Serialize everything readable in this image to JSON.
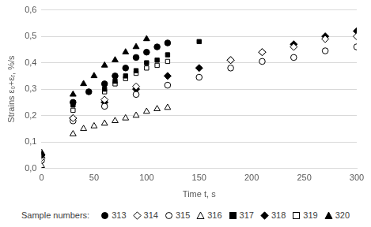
{
  "chart_data": {
    "type": "scatter",
    "x_label": "Time t, s",
    "y_label": "Strains ε₀+εᵣ, %/s",
    "legend_title": "Sample numbers:",
    "legend": "bottom",
    "grid": "y",
    "xlim": [
      0,
      300
    ],
    "xticks": [
      0,
      50,
      100,
      150,
      200,
      250,
      300
    ],
    "ylim": [
      0,
      0.6
    ],
    "yticks": [
      {
        "value": 0,
        "label": "0,0"
      },
      {
        "value": 0.1,
        "label": "0,1"
      },
      {
        "value": 0.2,
        "label": "0,2"
      },
      {
        "value": 0.3,
        "label": "0,3"
      },
      {
        "value": 0.4,
        "label": "0,4"
      },
      {
        "value": 0.5,
        "label": "0,5"
      },
      {
        "value": 0.6,
        "label": "0,6"
      }
    ],
    "series": [
      {
        "name": "313",
        "color": "#000000",
        "marker": "circle",
        "x": [
          0,
          30,
          45,
          60,
          70,
          80,
          90,
          100,
          110,
          120
        ],
        "values": [
          0.05,
          0.25,
          0.29,
          0.32,
          0.35,
          0.38,
          0.42,
          0.44,
          0.46,
          0.475
        ]
      },
      {
        "name": "314",
        "color": "#000000",
        "marker": "diamond-open",
        "x": [
          0,
          30,
          60,
          90,
          180,
          210,
          240,
          270,
          300
        ],
        "values": [
          0.04,
          0.19,
          0.26,
          0.31,
          0.41,
          0.44,
          0.46,
          0.49,
          0.5
        ]
      },
      {
        "name": "315",
        "color": "#000000",
        "marker": "circle-open",
        "x": [
          0,
          30,
          60,
          90,
          120,
          150,
          180,
          210,
          240,
          270,
          300
        ],
        "values": [
          0.03,
          0.18,
          0.235,
          0.28,
          0.315,
          0.345,
          0.38,
          0.405,
          0.42,
          0.445,
          0.46
        ]
      },
      {
        "name": "316",
        "color": "#000000",
        "marker": "triangle-open",
        "x": [
          0,
          30,
          40,
          50,
          60,
          70,
          80,
          90,
          100,
          110,
          120
        ],
        "values": [
          0.01,
          0.13,
          0.15,
          0.16,
          0.17,
          0.18,
          0.19,
          0.2,
          0.215,
          0.225,
          0.23
        ]
      },
      {
        "name": "317",
        "color": "#000000",
        "marker": "square",
        "x": [
          0,
          30,
          60,
          70,
          80,
          90,
          100,
          110,
          120,
          150
        ],
        "values": [
          0.04,
          0.24,
          0.3,
          0.33,
          0.35,
          0.37,
          0.4,
          0.41,
          0.43,
          0.48
        ]
      },
      {
        "name": "318",
        "color": "#000000",
        "marker": "diamond",
        "x": [
          0,
          30,
          60,
          90,
          120,
          150,
          180,
          210,
          240,
          270,
          300
        ],
        "values": [
          0.05,
          0.19,
          0.25,
          0.3,
          0.35,
          0.38,
          0.41,
          0.44,
          0.47,
          0.5,
          0.52
        ]
      },
      {
        "name": "319",
        "color": "#000000",
        "marker": "square-open",
        "x": [
          0,
          30,
          60,
          70,
          80,
          90,
          100,
          110,
          120
        ],
        "values": [
          0.03,
          0.22,
          0.29,
          0.32,
          0.34,
          0.36,
          0.38,
          0.39,
          0.405
        ]
      },
      {
        "name": "320",
        "color": "#000000",
        "marker": "triangle",
        "x": [
          0,
          30,
          40,
          50,
          60,
          70,
          80,
          90,
          100
        ],
        "values": [
          0.06,
          0.28,
          0.32,
          0.35,
          0.39,
          0.41,
          0.44,
          0.46,
          0.49
        ]
      }
    ]
  }
}
